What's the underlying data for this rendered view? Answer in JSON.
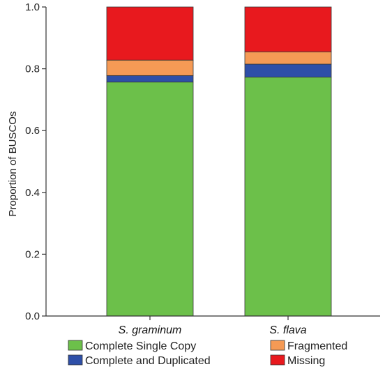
{
  "chart_data": {
    "type": "bar",
    "stacked": true,
    "categories": [
      "S. graminum",
      "S. flava"
    ],
    "series": [
      {
        "name": "Complete Single Copy",
        "color": "#6cc04a",
        "values": [
          0.757,
          0.773
        ]
      },
      {
        "name": "Complete and Duplicated",
        "color": "#2e4fa8",
        "values": [
          0.021,
          0.042
        ]
      },
      {
        "name": "Fragmented",
        "color": "#f59a55",
        "values": [
          0.05,
          0.04
        ]
      },
      {
        "name": "Missing",
        "color": "#e8191e",
        "values": [
          0.172,
          0.145
        ]
      }
    ],
    "ylabel": "Proportion of BUSCOs",
    "ylim": [
      0,
      1.0
    ],
    "yticks": [
      "0.0",
      "0.2",
      "0.4",
      "0.6",
      "0.8",
      "1.0"
    ],
    "legend_position": "bottom",
    "grid": false
  }
}
